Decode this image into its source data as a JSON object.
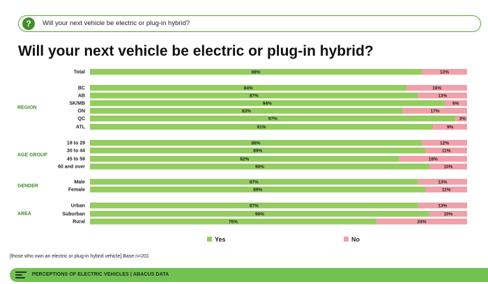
{
  "question": {
    "text": "Will your next vehicle be electric or plug-in hybrid?",
    "icon": "question-icon"
  },
  "page_title": "Will your next vehicle be electric or plug-in hybrid?",
  "footnote": "[those who own an electric or plug-in hybrid vehicle] Base n=201",
  "footer": {
    "text": "PERCEPTIONS OF ELECTRIC VEHICLES | ABACUS DATA"
  },
  "colors": {
    "yes": "#94cd5f",
    "no": "#f0a0a8",
    "group_label": "#3f8f2a",
    "accent": "#71c153"
  },
  "chart_data": {
    "type": "bar",
    "orientation": "horizontal",
    "stacked": true,
    "title": "Will your next vehicle be electric or plug-in hybrid?",
    "xlim": [
      0,
      100
    ],
    "legend_position": "bottom-center",
    "series": [
      {
        "name": "Yes",
        "color": "#94cd5f"
      },
      {
        "name": "No",
        "color": "#f0a0a8"
      }
    ],
    "groups": [
      {
        "label": "",
        "rows": [
          {
            "label": "Total",
            "yes": 88,
            "no": 12
          }
        ]
      },
      {
        "label": "REGION",
        "rows": [
          {
            "label": "BC",
            "yes": 84,
            "no": 16
          },
          {
            "label": "AB",
            "yes": 87,
            "no": 13
          },
          {
            "label": "SK/MB",
            "yes": 94,
            "no": 6
          },
          {
            "label": "ON",
            "yes": 83,
            "no": 17
          },
          {
            "label": "QC",
            "yes": 97,
            "no": 3
          },
          {
            "label": "ATL",
            "yes": 91,
            "no": 9
          }
        ]
      },
      {
        "label": "AGE GROUP",
        "rows": [
          {
            "label": "18 to 29",
            "yes": 88,
            "no": 12
          },
          {
            "label": "30 to 44",
            "yes": 89,
            "no": 11
          },
          {
            "label": "45 to 59",
            "yes": 82,
            "no": 18
          },
          {
            "label": "60 and over",
            "yes": 90,
            "no": 10
          }
        ]
      },
      {
        "label": "GENDER",
        "rows": [
          {
            "label": "Male",
            "yes": 87,
            "no": 13
          },
          {
            "label": "Female",
            "yes": 89,
            "no": 11
          }
        ]
      },
      {
        "label": "AREA",
        "rows": [
          {
            "label": "Urban",
            "yes": 87,
            "no": 13
          },
          {
            "label": "Suburban",
            "yes": 90,
            "no": 10
          },
          {
            "label": "Rural",
            "yes": 76,
            "no": 24
          }
        ]
      }
    ]
  }
}
